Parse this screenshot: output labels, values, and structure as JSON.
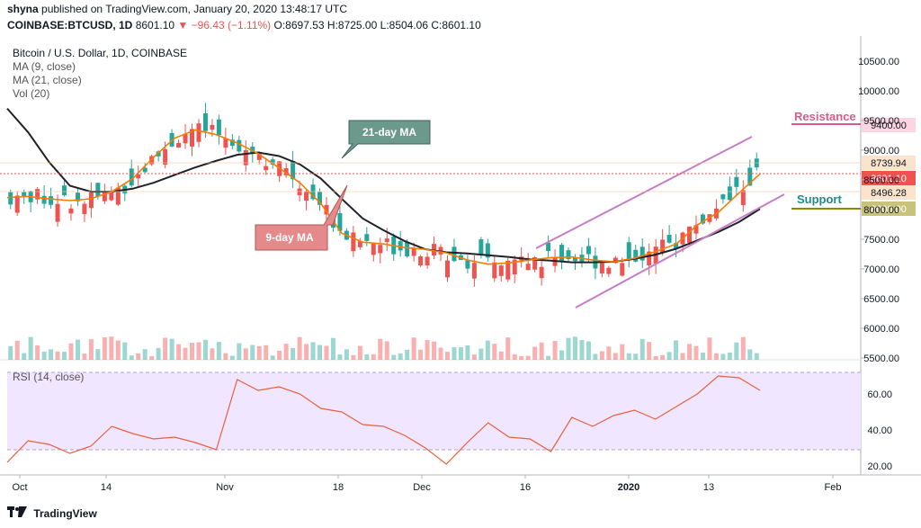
{
  "publisher": {
    "user": "shyna",
    "text": "published on TradingView.com, January 20, 2020 13:48:17 UTC"
  },
  "ohlc": {
    "symbol": "COINBASE:BTCUSD, 1D",
    "last": "8601.10",
    "change": "−96.43 (−1.11%)",
    "o": "O:8697.53",
    "h": "H:8725.00",
    "l": "L:8504.06",
    "c": "C:8601.10"
  },
  "legend": {
    "title": "Bitcoin / U.S. Dollar, 1D, COINBASE",
    "ma9": "MA (9, close)",
    "ma21": "MA (21, close)",
    "vol": "Vol (20)",
    "rsi": "RSI (14, close)"
  },
  "annotations": {
    "ma21_label": "21-day MA",
    "ma9_label": "9-day MA",
    "resistance": "Resistance",
    "support": "Support"
  },
  "axis": {
    "price_ticks": [
      "10500.00",
      "10000.00",
      "9500.00",
      "9000.00",
      "8500.00",
      "8000.00",
      "7500.00",
      "7000.00",
      "6500.00",
      "6000.00",
      "5500.00"
    ],
    "rsi_ticks": [
      "60.00",
      "40.00",
      "20.00"
    ],
    "x_ticks": [
      "Oct",
      "14",
      "Nov",
      "18",
      "Dec",
      "16",
      "2020",
      "13",
      "Feb"
    ],
    "price_labels": {
      "high": "8739.94",
      "last": "8601.10",
      "low": "8496.28",
      "resistance": "9400.00",
      "support": "8000.00"
    }
  },
  "colors": {
    "up": "#26a69a",
    "down": "#ef5350",
    "ma9": "#f57c00",
    "ma21": "#1f2329",
    "channel": "#c77dc7",
    "resistance": "#d85c8a",
    "support": "#8a8a00",
    "rsi_band": "#f0e6ff",
    "rsi_line": "#e8613c"
  },
  "footer": {
    "brand": "TradingView"
  },
  "chart_data": {
    "type": "line",
    "x_ticks": [
      "Oct",
      "14",
      "Nov",
      "18",
      "Dec",
      "16",
      "2020",
      "13",
      "Feb"
    ],
    "series": [
      {
        "name": "MA (9, close)",
        "values": [
          8200,
          8220,
          8180,
          8150,
          8180,
          8300,
          8520,
          8880,
          9200,
          9340,
          9260,
          9120,
          8940,
          8700,
          8450,
          8100,
          7600,
          7450,
          7420,
          7360,
          7330,
          7270,
          7150,
          7080,
          7100,
          7150,
          7190,
          7200,
          7150,
          7120,
          7180,
          7290,
          7420,
          7740,
          7950,
          8280,
          8600
        ]
      },
      {
        "name": "MA (21, close)",
        "values": [
          9700,
          9300,
          8800,
          8400,
          8300,
          8300,
          8350,
          8450,
          8580,
          8710,
          8820,
          8920,
          8960,
          8900,
          8760,
          8520,
          8180,
          7850,
          7650,
          7470,
          7330,
          7280,
          7260,
          7230,
          7200,
          7160,
          7140,
          7110,
          7110,
          7120,
          7170,
          7240,
          7340,
          7480,
          7620,
          7790,
          8010
        ]
      },
      {
        "name": "RSI (14, close)",
        "values": [
          22,
          34,
          32,
          27,
          31,
          42,
          38,
          35,
          36,
          33,
          29,
          68,
          62,
          64,
          60,
          52,
          50,
          43,
          42,
          37,
          30,
          21,
          33,
          44,
          36,
          35,
          28,
          47,
          42,
          48,
          51,
          46,
          53,
          60,
          70,
          69,
          62
        ]
      }
    ],
    "annotations": [
      "21-day MA",
      "9-day MA",
      "Resistance",
      "Support"
    ],
    "ylim": [
      5500,
      10800
    ],
    "rsi_ylim": [
      15,
      75
    ]
  }
}
